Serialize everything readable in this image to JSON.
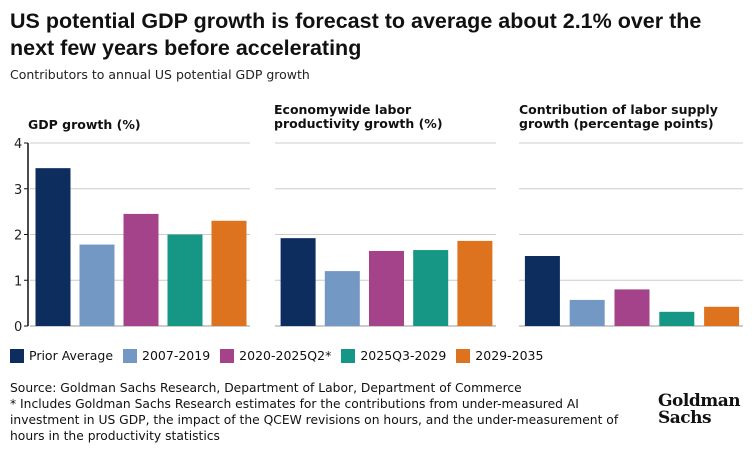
{
  "title": "US potential GDP growth is forecast to average about 2.1% over the next few years before accelerating",
  "subtitle": "Contributors to annual US potential GDP growth",
  "legend": [
    {
      "label": "Prior Average",
      "color": "#0c2d5e"
    },
    {
      "label": "2007-2019",
      "color": "#7398c4"
    },
    {
      "label": "2020-2025Q2*",
      "color": "#a4428a"
    },
    {
      "label": "2025Q3-2029",
      "color": "#169684"
    },
    {
      "label": "2029-2035",
      "color": "#dd731e"
    }
  ],
  "chart_data": [
    {
      "type": "bar",
      "title": "GDP growth (%)",
      "categories": [
        "Prior Average",
        "2007-2019",
        "2020-2025Q2*",
        "2025Q3-2029",
        "2029-2035"
      ],
      "values": [
        3.45,
        1.78,
        2.45,
        2.0,
        2.3
      ],
      "ylim": [
        0,
        4
      ],
      "yticks": [
        "0",
        "1",
        "2",
        "3",
        "4"
      ],
      "grid": true
    },
    {
      "type": "bar",
      "title": "Economywide labor productivity growth (%)",
      "categories": [
        "Prior Average",
        "2007-2019",
        "2020-2025Q2*",
        "2025Q3-2029",
        "2029-2035"
      ],
      "values": [
        1.92,
        1.2,
        1.64,
        1.66,
        1.86
      ],
      "ylim": [
        0,
        4
      ],
      "grid": true
    },
    {
      "type": "bar",
      "title": "Contribution of labor supply growth (percentage points)",
      "categories": [
        "Prior Average",
        "2007-2019",
        "2020-2025Q2*",
        "2025Q3-2029",
        "2029-2035"
      ],
      "values": [
        1.53,
        0.57,
        0.8,
        0.31,
        0.42
      ],
      "ylim": [
        0,
        4
      ],
      "grid": true
    }
  ],
  "source": "Source: Goldman Sachs Research, Department of Labor, Department of Commerce",
  "note": "* Includes Goldman Sachs Research estimates for the contributions from under-measured AI investment in US GDP, the impact of the QCEW revisions on hours, and the under-measurement of hours in the productivity statistics",
  "logo": "Goldman Sachs"
}
